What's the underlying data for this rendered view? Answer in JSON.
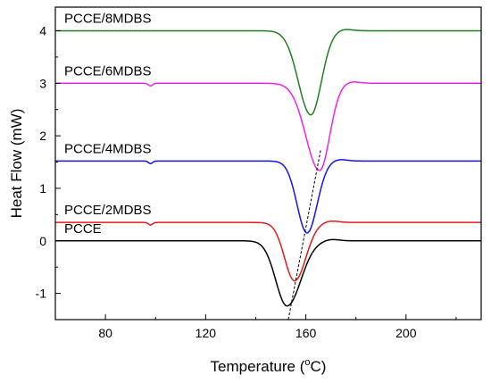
{
  "chart_data": {
    "type": "line",
    "xlabel": "Temperature (",
    "xlabel_unit": "o",
    "xlabel_unit_suffix": "C)",
    "ylabel": "Heat Flow (mW)",
    "xlim": [
      60,
      230
    ],
    "ylim": [
      -1.5,
      4.45
    ],
    "x_ticks": [
      80,
      120,
      160,
      200
    ],
    "y_ticks": [
      -1,
      0,
      1,
      2,
      3,
      4
    ],
    "x_tick_labels": [
      "80",
      "120",
      "160",
      "200"
    ],
    "y_tick_labels": [
      "-1",
      "0",
      "1",
      "2",
      "3",
      "4"
    ],
    "series": [
      {
        "name": "PCCE",
        "color": "#000000",
        "baseline": 0.0,
        "peak_x": 152.5,
        "peak_y": -1.24,
        "width_left": 4.5,
        "width_right": 5.5,
        "bump_x": null
      },
      {
        "name": "PCCE/2MDBS",
        "color": "#e41a1a",
        "baseline": 0.35,
        "peak_x": 155.5,
        "peak_y": -0.76,
        "width_left": 4.0,
        "width_right": 4.5,
        "bump_x": 98
      },
      {
        "name": "PCCE/4MDBS",
        "color": "#1414e6",
        "baseline": 1.52,
        "peak_x": 160.5,
        "peak_y": 0.15,
        "width_left": 4.0,
        "width_right": 4.0,
        "bump_x": 98
      },
      {
        "name": "PCCE/6MDBS",
        "color": "#ee22ee",
        "baseline": 3.0,
        "peak_x": 165.5,
        "peak_y": 1.34,
        "width_left": 5.5,
        "width_right": 4.0,
        "bump_x": 98
      },
      {
        "name": "PCCE/8MDBS",
        "color": "#1f7f1f",
        "baseline": 4.0,
        "peak_x": 162.0,
        "peak_y": 2.4,
        "width_left": 5.0,
        "width_right": 4.2,
        "bump_x": null
      }
    ],
    "trend_line": {
      "x": [
        153.0,
        166.0
      ],
      "y": [
        -1.5,
        1.75
      ]
    },
    "grid": false,
    "legend": "labels above each curve"
  }
}
